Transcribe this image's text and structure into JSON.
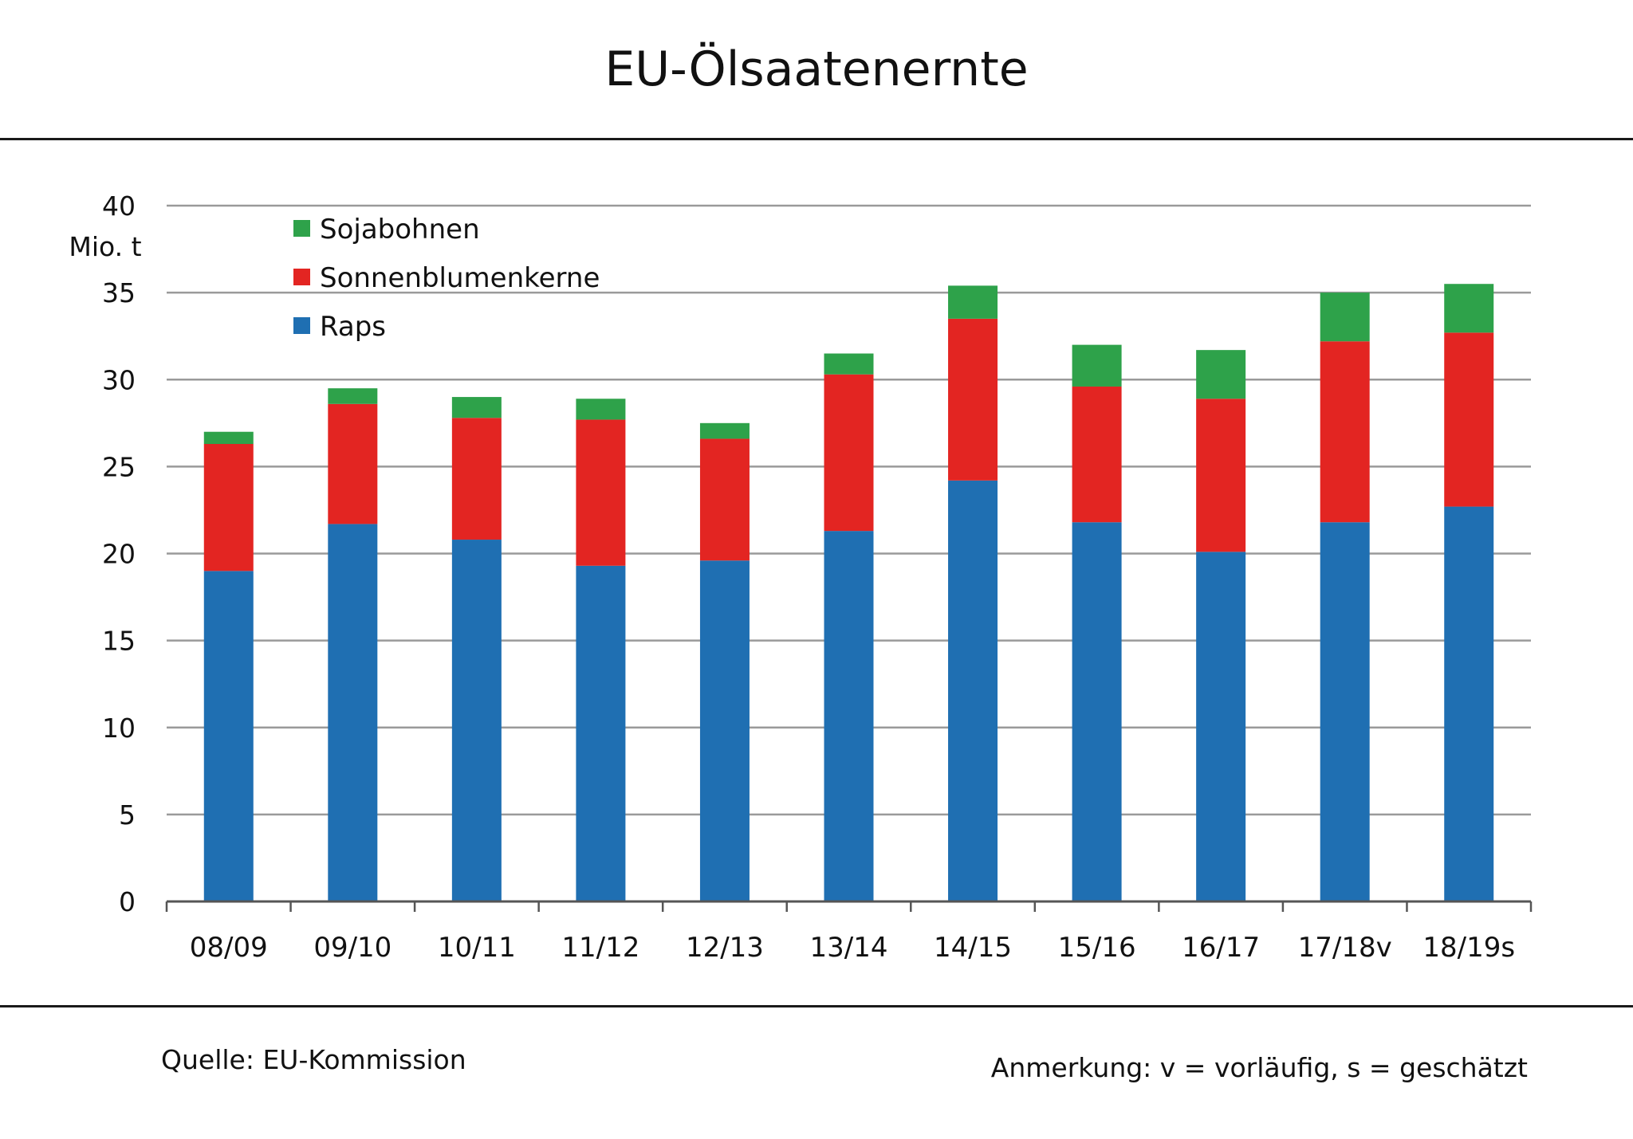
{
  "chart_data": {
    "type": "bar",
    "stacked": true,
    "title": "EU-Ölsaatenernte",
    "ylabel": "Mio. t",
    "xlabel": "",
    "ylim": [
      0,
      40
    ],
    "yticks": [
      0,
      5,
      10,
      15,
      20,
      25,
      30,
      35,
      40
    ],
    "grid": true,
    "legend_position": "top-left",
    "categories": [
      "08/09",
      "09/10",
      "10/11",
      "11/12",
      "12/13",
      "13/14",
      "14/15",
      "15/16",
      "16/17",
      "17/18v",
      "18/19s"
    ],
    "series": [
      {
        "name": "Raps",
        "color": "#1f6fb2",
        "values": [
          19.0,
          21.7,
          20.8,
          19.3,
          19.6,
          21.3,
          24.2,
          21.8,
          20.1,
          21.8,
          22.7
        ]
      },
      {
        "name": "Sonnenblumenkerne",
        "color": "#e32522",
        "values": [
          7.3,
          6.9,
          7.0,
          8.4,
          7.0,
          9.0,
          9.3,
          7.8,
          8.8,
          10.4,
          10.0
        ]
      },
      {
        "name": "Sojabohnen",
        "color": "#2ea24a",
        "values": [
          0.7,
          0.9,
          1.2,
          1.2,
          0.9,
          1.2,
          1.9,
          2.4,
          2.8,
          2.8,
          2.8
        ]
      }
    ],
    "legend": [
      "Sojabohnen",
      "Sonnenblumenkerne",
      "Raps"
    ]
  },
  "footer": {
    "source": "Quelle: EU-Kommission",
    "note": "Anmerkung: v = vorläufig, s = geschätzt"
  },
  "colors": {
    "grid": "#9a9a9a",
    "axis": "#555555",
    "rule": "#1a1a1a"
  }
}
